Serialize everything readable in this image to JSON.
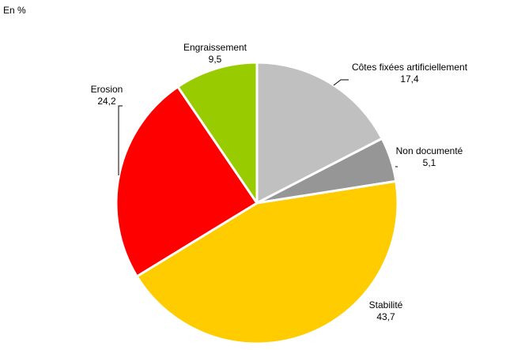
{
  "chart_data": {
    "type": "pie",
    "unit_label": "En %",
    "slices": [
      {
        "label": "Côtes fixées artificiellement",
        "value": 17.4,
        "value_text": "17,4",
        "color": "#c0c0c0"
      },
      {
        "label": "Non documenté",
        "value": 5.1,
        "value_text": "5,1",
        "color": "#969696"
      },
      {
        "label": "Stabilité",
        "value": 43.7,
        "value_text": "43,7",
        "color": "#ffcc00"
      },
      {
        "label": "Erosion",
        "value": 24.2,
        "value_text": "24,2",
        "color": "#ff0000"
      },
      {
        "label": "Engraissement",
        "value": 9.5,
        "value_text": "9,5",
        "color": "#99cc00"
      }
    ]
  }
}
